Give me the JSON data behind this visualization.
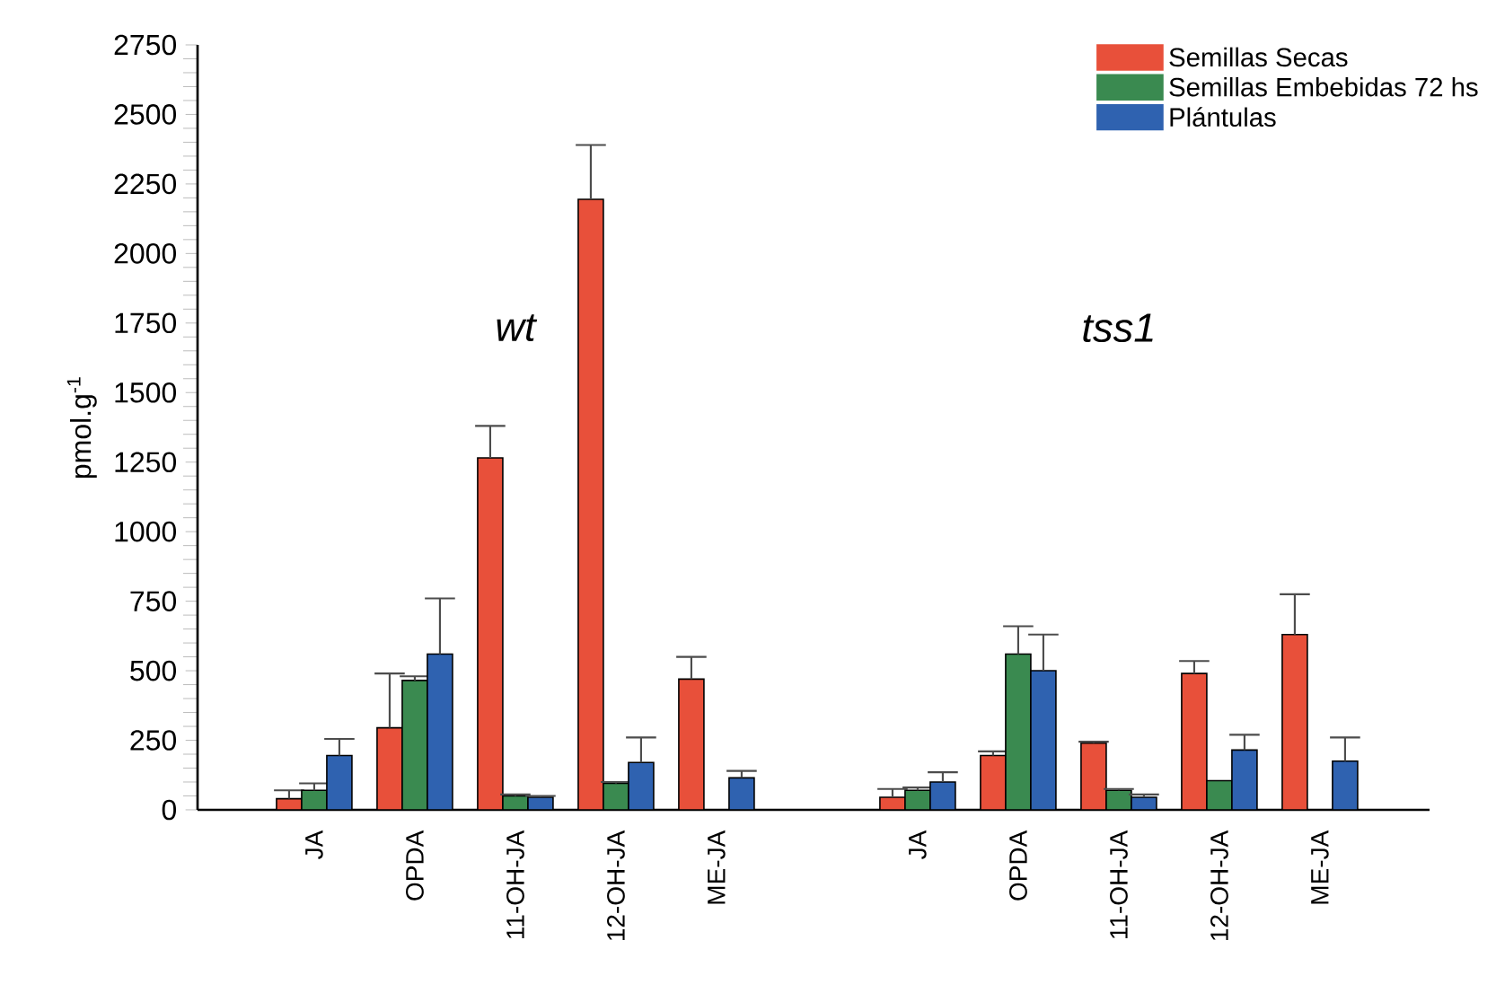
{
  "chart_data": {
    "type": "bar",
    "ylabel": "pmol.g$^{-1}$",
    "categories": [
      "JA",
      "OPDA",
      "11-OH-JA",
      "12-OH-JA",
      "ME-JA",
      null,
      "JA",
      "OPDA",
      "11-OH-JA",
      "12-OH-JA",
      "ME-JA"
    ],
    "series": [
      {
        "name": "Semillas Secas",
        "color": "#e8503a",
        "values": [
          40,
          295,
          1265,
          2195,
          470,
          null,
          45,
          195,
          240,
          490,
          630
        ],
        "errors": [
          [
            40,
            70
          ],
          [
            295,
            490
          ],
          [
            1265,
            1380
          ],
          [
            2195,
            2390
          ],
          [
            470,
            550
          ],
          null,
          [
            45,
            75
          ],
          [
            195,
            210
          ],
          [
            240,
            245
          ],
          [
            490,
            535
          ],
          [
            630,
            775
          ]
        ]
      },
      {
        "name": "Semillas Embebidas 72 hs",
        "color": "#3a8a50",
        "values": [
          70,
          465,
          50,
          95,
          null,
          null,
          70,
          560,
          70,
          105,
          null
        ],
        "errors": [
          [
            70,
            95
          ],
          [
            465,
            480
          ],
          [
            50,
            55
          ],
          [
            95,
            100
          ],
          null,
          null,
          [
            70,
            80
          ],
          [
            560,
            660
          ],
          [
            70,
            75
          ],
          null,
          null
        ]
      },
      {
        "name": "Plántulas",
        "color": "#2f62b0",
        "values": [
          195,
          560,
          45,
          170,
          115,
          null,
          100,
          500,
          45,
          215,
          175
        ],
        "errors": [
          [
            195,
            255
          ],
          [
            560,
            760
          ],
          [
            45,
            50
          ],
          [
            170,
            260
          ],
          [
            115,
            140
          ],
          null,
          [
            100,
            135
          ],
          [
            500,
            630
          ],
          [
            45,
            55
          ],
          [
            215,
            270
          ],
          [
            175,
            260
          ]
        ]
      }
    ],
    "ylim": [
      0,
      2750
    ],
    "yticks": [
      0,
      250,
      500,
      750,
      1000,
      1250,
      1500,
      1750,
      2000,
      2250,
      2500,
      2750
    ],
    "legend": "top right",
    "annotations": [
      "wt",
      "tss1"
    ]
  }
}
